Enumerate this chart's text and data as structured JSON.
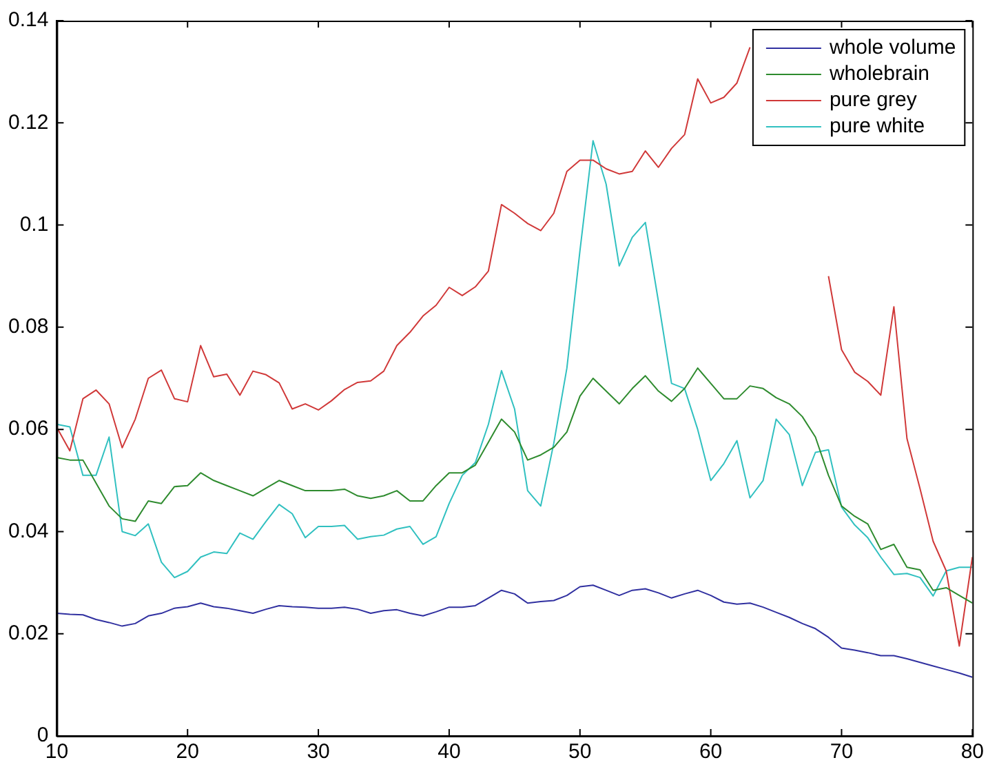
{
  "chart_data": {
    "type": "line",
    "x": [
      10,
      11,
      12,
      13,
      14,
      15,
      16,
      17,
      18,
      19,
      20,
      21,
      22,
      23,
      24,
      25,
      26,
      27,
      28,
      29,
      30,
      31,
      32,
      33,
      34,
      35,
      36,
      37,
      38,
      39,
      40,
      41,
      42,
      43,
      44,
      45,
      46,
      47,
      48,
      49,
      50,
      51,
      52,
      53,
      54,
      55,
      56,
      57,
      58,
      59,
      60,
      61,
      62,
      63,
      64,
      65,
      66,
      67,
      68,
      69,
      70,
      71,
      72,
      73,
      74,
      75,
      76,
      77,
      78,
      79,
      80
    ],
    "series": [
      {
        "name": "whole volume",
        "color": "#3030a0",
        "values": [
          0.024,
          0.0238,
          0.0237,
          0.0228,
          0.0222,
          0.0215,
          0.022,
          0.0235,
          0.024,
          0.025,
          0.0253,
          0.026,
          0.0253,
          0.025,
          0.0245,
          0.024,
          0.0248,
          0.0255,
          0.0253,
          0.0252,
          0.025,
          0.025,
          0.0252,
          0.0248,
          0.024,
          0.0245,
          0.0247,
          0.024,
          0.0235,
          0.0243,
          0.0252,
          0.0252,
          0.0255,
          0.027,
          0.0285,
          0.0278,
          0.026,
          0.0263,
          0.0265,
          0.0275,
          0.0292,
          0.0295,
          0.0285,
          0.0275,
          0.0285,
          0.0288,
          0.028,
          0.027,
          0.0278,
          0.0285,
          0.0275,
          0.0262,
          0.0258,
          0.026,
          0.0252,
          0.0242,
          0.0232,
          0.022,
          0.021,
          0.0193,
          0.0172,
          0.0168,
          0.0163,
          0.0157,
          0.0157,
          0.0151,
          0.0144,
          0.0137,
          0.013,
          0.0123,
          0.0115
        ]
      },
      {
        "name": "wholebrain",
        "color": "#2e8b2e",
        "values": [
          0.0545,
          0.054,
          0.054,
          0.0495,
          0.045,
          0.0425,
          0.042,
          0.046,
          0.0455,
          0.0488,
          0.049,
          0.0515,
          0.05,
          0.049,
          0.048,
          0.047,
          0.0485,
          0.05,
          0.049,
          0.048,
          0.048,
          0.048,
          0.0483,
          0.047,
          0.0465,
          0.047,
          0.048,
          0.046,
          0.046,
          0.049,
          0.0515,
          0.0515,
          0.053,
          0.0575,
          0.062,
          0.0595,
          0.054,
          0.055,
          0.0565,
          0.0595,
          0.0665,
          0.07,
          0.0675,
          0.065,
          0.068,
          0.0705,
          0.0675,
          0.0655,
          0.068,
          0.072,
          0.069,
          0.066,
          0.066,
          0.0685,
          0.068,
          0.0662,
          0.065,
          0.0625,
          0.0585,
          0.051,
          0.045,
          0.043,
          0.0415,
          0.0365,
          0.0375,
          0.033,
          0.0325,
          0.0285,
          0.029,
          0.0275,
          0.026
        ]
      },
      {
        "name": "pure grey",
        "color": "#d03838",
        "values": [
          0.0604,
          0.0558,
          0.066,
          0.0677,
          0.065,
          0.0564,
          0.062,
          0.07,
          0.0716,
          0.066,
          0.0654,
          0.0764,
          0.0703,
          0.0708,
          0.0667,
          0.0714,
          0.0707,
          0.0691,
          0.064,
          0.065,
          0.0638,
          0.0656,
          0.0678,
          0.0692,
          0.0695,
          0.0714,
          0.0764,
          0.079,
          0.0822,
          0.0843,
          0.0878,
          0.0862,
          0.0879,
          0.091,
          0.104,
          0.1023,
          0.1003,
          0.0989,
          0.1023,
          0.1105,
          0.1127,
          0.1127,
          0.111,
          0.11,
          0.1105,
          0.1145,
          0.1113,
          0.115,
          0.1177,
          0.1286,
          0.1239,
          0.125,
          0.1278,
          0.1348,
          null,
          null,
          null,
          null,
          null,
          0.09,
          0.0756,
          0.0712,
          0.0694,
          0.0667,
          0.084,
          0.0582,
          0.0484,
          0.0381,
          0.0323,
          0.0176,
          0.035
        ]
      },
      {
        "name": "pure white",
        "color": "#30c0c0",
        "values": [
          0.061,
          0.0605,
          0.051,
          0.051,
          0.0585,
          0.04,
          0.0392,
          0.0415,
          0.034,
          0.031,
          0.0322,
          0.035,
          0.036,
          0.0357,
          0.0397,
          0.0385,
          0.042,
          0.0453,
          0.0435,
          0.0388,
          0.041,
          0.041,
          0.0412,
          0.0385,
          0.039,
          0.0393,
          0.0405,
          0.041,
          0.0375,
          0.039,
          0.0455,
          0.051,
          0.0535,
          0.061,
          0.0715,
          0.064,
          0.048,
          0.045,
          0.0573,
          0.072,
          0.095,
          0.1165,
          0.108,
          0.092,
          0.0976,
          0.1005,
          0.085,
          0.069,
          0.068,
          0.06,
          0.05,
          0.0533,
          0.0578,
          0.0466,
          0.05,
          0.062,
          0.059,
          0.049,
          0.0555,
          0.056,
          0.0448,
          0.0413,
          0.0388,
          0.035,
          0.0316,
          0.0318,
          0.031,
          0.0274,
          0.0323,
          0.033,
          0.033
        ]
      }
    ],
    "xlim": [
      10,
      80
    ],
    "xticks": [
      10,
      20,
      30,
      40,
      50,
      60,
      70,
      80
    ],
    "ylim": [
      0,
      0.14
    ],
    "yticks": [
      0,
      0.02,
      0.04,
      0.06,
      0.08,
      0.1,
      0.12,
      0.14
    ],
    "grid": false,
    "legend": "top right",
    "marker": "none",
    "line_style": "solid"
  }
}
